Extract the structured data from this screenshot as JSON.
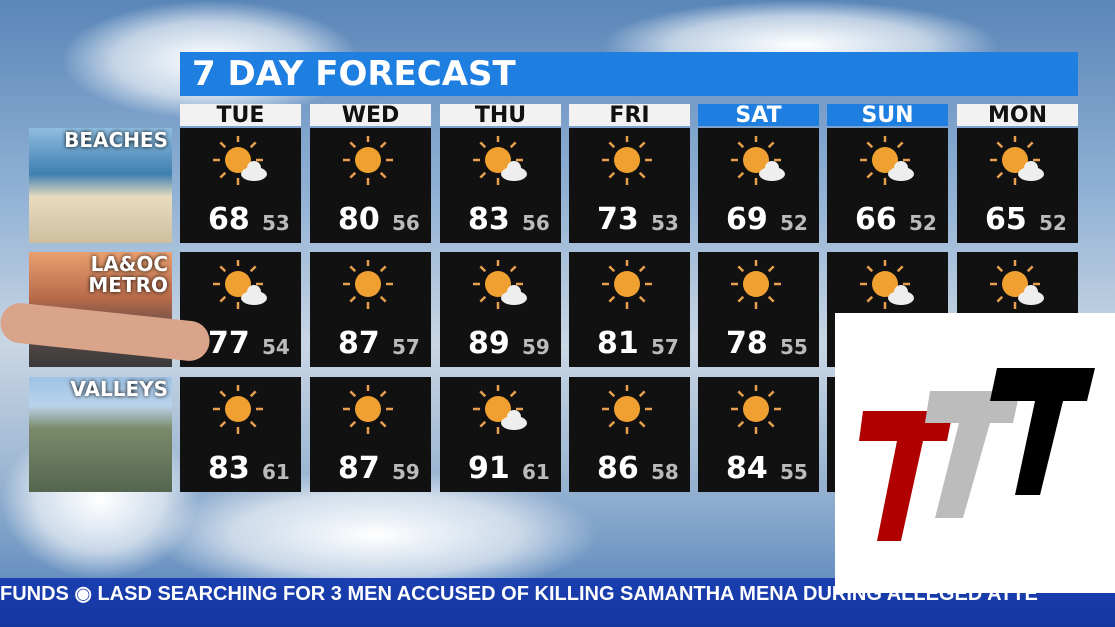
{
  "title": "7 DAY FORECAST",
  "days": [
    {
      "label": "TUE",
      "weekend": false
    },
    {
      "label": "WED",
      "weekend": false
    },
    {
      "label": "THU",
      "weekend": false
    },
    {
      "label": "FRI",
      "weekend": false
    },
    {
      "label": "SAT",
      "weekend": true
    },
    {
      "label": "SUN",
      "weekend": true
    },
    {
      "label": "MON",
      "weekend": false
    }
  ],
  "regions": [
    {
      "label": "BEACHES",
      "cells": [
        {
          "icon": "partly-sunny-icon",
          "hi": "68",
          "lo": "53"
        },
        {
          "icon": "sun-icon",
          "hi": "80",
          "lo": "56"
        },
        {
          "icon": "partly-sunny-icon",
          "hi": "83",
          "lo": "56"
        },
        {
          "icon": "sun-icon",
          "hi": "73",
          "lo": "53"
        },
        {
          "icon": "partly-sunny-icon",
          "hi": "69",
          "lo": "52"
        },
        {
          "icon": "partly-sunny-icon",
          "hi": "66",
          "lo": "52"
        },
        {
          "icon": "partly-sunny-icon",
          "hi": "65",
          "lo": "52"
        }
      ]
    },
    {
      "label": "LA&OC METRO",
      "cells": [
        {
          "icon": "partly-sunny-icon",
          "hi": "77",
          "lo": "54"
        },
        {
          "icon": "sun-icon",
          "hi": "87",
          "lo": "57"
        },
        {
          "icon": "partly-sunny-icon",
          "hi": "89",
          "lo": "59"
        },
        {
          "icon": "sun-icon",
          "hi": "81",
          "lo": "57"
        },
        {
          "icon": "sun-icon",
          "hi": "78",
          "lo": "55"
        },
        {
          "icon": "partly-sunny-icon"
        },
        {
          "icon": "partly-sunny-icon"
        }
      ]
    },
    {
      "label": "VALLEYS",
      "cells": [
        {
          "icon": "sun-icon",
          "hi": "83",
          "lo": "61"
        },
        {
          "icon": "sun-icon",
          "hi": "87",
          "lo": "59"
        },
        {
          "icon": "partly-sunny-icon",
          "hi": "91",
          "lo": "61"
        },
        {
          "icon": "sun-icon",
          "hi": "86",
          "lo": "58"
        },
        {
          "icon": "sun-icon",
          "hi": "84",
          "lo": "55"
        },
        {},
        {}
      ]
    }
  ],
  "ticker": "FUNDS  ◉  LASD SEARCHING FOR 3 MEN ACCUSED OF KILLING SAMANTHA MENA DURING ALLEGED ATTE",
  "colors": {
    "title_bar": "#1f7fe0",
    "sun": "#f0a030",
    "logo_red": "#b00000",
    "logo_gray": "#bcbcbc",
    "logo_black": "#000000"
  }
}
